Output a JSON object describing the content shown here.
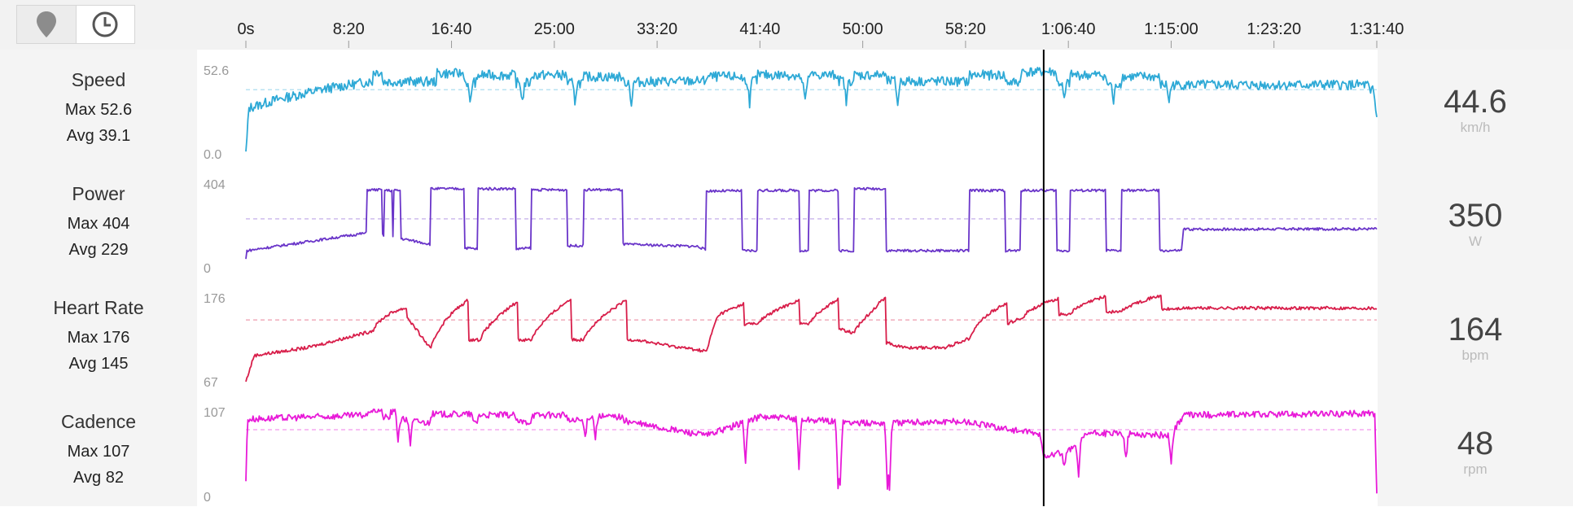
{
  "toolbar": {
    "map_button": "map-pin-icon",
    "time_button": "clock-icon"
  },
  "chart_data": {
    "type": "line",
    "x_unit": "seconds",
    "x_range": [
      0,
      5500
    ],
    "x_ticks": [
      {
        "label": "0s",
        "value": 0
      },
      {
        "label": "8:20",
        "value": 500
      },
      {
        "label": "16:40",
        "value": 1000
      },
      {
        "label": "25:00",
        "value": 1500
      },
      {
        "label": "33:20",
        "value": 2000
      },
      {
        "label": "41:40",
        "value": 2500
      },
      {
        "label": "50:00",
        "value": 3000
      },
      {
        "label": "58:20",
        "value": 3500
      },
      {
        "label": "1:06:40",
        "value": 4000
      },
      {
        "label": "1:15:00",
        "value": 4500
      },
      {
        "label": "1:23:20",
        "value": 5000
      },
      {
        "label": "1:31:40",
        "value": 5500
      }
    ],
    "cursor_x": 3880,
    "series": [
      {
        "name": "Speed",
        "max_label": "Max 52.6",
        "avg_label": "Avg 39.1",
        "max": 52.6,
        "avg": 39.1,
        "ylim": [
          0.0,
          52.6
        ],
        "ymax_label": "52.6",
        "ymin_label": "0.0",
        "current": "44.6",
        "unit": "km/h",
        "color": "#2ea9d6",
        "base": [
          [
            0,
            0
          ],
          [
            15,
            28
          ],
          [
            150,
            33
          ],
          [
            400,
            40
          ],
          [
            600,
            44
          ],
          [
            900,
            44
          ],
          [
            1500,
            43
          ],
          [
            2500,
            45
          ],
          [
            3500,
            44
          ],
          [
            4500,
            42
          ],
          [
            5480,
            42
          ],
          [
            5500,
            22
          ]
        ],
        "intervals": [
          [
            620,
            660,
            50
          ],
          [
            930,
            1060,
            49
          ],
          [
            1130,
            1310,
            48
          ],
          [
            1390,
            1560,
            48
          ],
          [
            1640,
            1830,
            47
          ],
          [
            2240,
            2410,
            47
          ],
          [
            2490,
            2690,
            48
          ],
          [
            2740,
            2880,
            48
          ],
          [
            2960,
            3110,
            48
          ],
          [
            3520,
            3690,
            48
          ],
          [
            3770,
            3940,
            50
          ],
          [
            4010,
            4180,
            48
          ],
          [
            4260,
            4440,
            47
          ]
        ],
        "dips": [
          [
            1090,
            30
          ],
          [
            1345,
            32
          ],
          [
            1600,
            32
          ],
          [
            1875,
            30
          ],
          [
            2450,
            31
          ],
          [
            2720,
            31
          ],
          [
            2920,
            31
          ],
          [
            3170,
            30
          ],
          [
            3980,
            32
          ],
          [
            4220,
            31
          ],
          [
            4490,
            32
          ],
          [
            5470,
            35
          ]
        ],
        "noise": 3
      },
      {
        "name": "Power",
        "max_label": "Max 404",
        "avg_label": "Avg 229",
        "max": 404,
        "avg": 229,
        "ylim": [
          0,
          404
        ],
        "ymax_label": "404",
        "ymin_label": "0",
        "current": "350",
        "unit": "W",
        "color": "#6a35c9",
        "base": [
          [
            0,
            40
          ],
          [
            5,
            80
          ],
          [
            600,
            165
          ],
          [
            900,
            110
          ],
          [
            1200,
            80
          ],
          [
            1500,
            100
          ],
          [
            1830,
            110
          ],
          [
            2200,
            100
          ],
          [
            2240,
            80
          ],
          [
            3000,
            80
          ],
          [
            3500,
            80
          ],
          [
            3800,
            80
          ],
          [
            4550,
            80
          ],
          [
            4560,
            180
          ],
          [
            5500,
            182
          ],
          [
            5498,
            170
          ],
          [
            5500,
            0
          ]
        ],
        "intervals": [
          [
            590,
            660,
            365
          ],
          [
            675,
            710,
            362
          ],
          [
            720,
            750,
            362
          ],
          [
            900,
            1060,
            370
          ],
          [
            1130,
            1310,
            370
          ],
          [
            1390,
            1560,
            365
          ],
          [
            1640,
            1830,
            365
          ],
          [
            2240,
            2410,
            360
          ],
          [
            2490,
            2690,
            362
          ],
          [
            2740,
            2880,
            362
          ],
          [
            2960,
            3110,
            370
          ],
          [
            3520,
            3690,
            362
          ],
          [
            3770,
            3940,
            362
          ],
          [
            4010,
            4180,
            362
          ],
          [
            4260,
            4440,
            362
          ]
        ],
        "dips": [],
        "noise": 6
      },
      {
        "name": "Heart Rate",
        "max_label": "Max 176",
        "avg_label": "Avg 145",
        "max": 176,
        "avg": 145,
        "ylim": [
          67,
          176
        ],
        "ymax_label": "176",
        "ymin_label": "67",
        "current": "164",
        "unit": "bpm",
        "color": "#d81e4a",
        "base": [
          [
            0,
            67
          ],
          [
            40,
            100
          ],
          [
            300,
            110
          ],
          [
            600,
            130
          ],
          [
            780,
            150
          ],
          [
            900,
            108
          ],
          [
            1000,
            120
          ],
          [
            1500,
            120
          ],
          [
            1900,
            120
          ],
          [
            2000,
            115
          ],
          [
            2250,
            105
          ],
          [
            2300,
            140
          ],
          [
            2800,
            140
          ],
          [
            3000,
            125
          ],
          [
            3200,
            110
          ],
          [
            3400,
            110
          ],
          [
            3800,
            150
          ],
          [
            4600,
            160
          ],
          [
            5500,
            160
          ],
          [
            5500,
            155
          ]
        ],
        "intervals": [
          [
            620,
            780,
            160
          ],
          [
            900,
            1080,
            170
          ],
          [
            1140,
            1320,
            168
          ],
          [
            1390,
            1580,
            172
          ],
          [
            1640,
            1850,
            170
          ],
          [
            2240,
            2420,
            165
          ],
          [
            2490,
            2690,
            170
          ],
          [
            2740,
            2880,
            172
          ],
          [
            2960,
            3110,
            174
          ],
          [
            3520,
            3700,
            165
          ],
          [
            3780,
            3950,
            172
          ],
          [
            4010,
            4180,
            175
          ],
          [
            4260,
            4450,
            176
          ]
        ],
        "dips": [],
        "noise": 2
      },
      {
        "name": "Cadence",
        "max_label": "Max 107",
        "avg_label": "Avg 82",
        "max": 107,
        "avg": 82,
        "ylim": [
          0,
          107
        ],
        "ymax_label": "107",
        "ymin_label": "0",
        "current": "48",
        "unit": "rpm",
        "color": "#e81ad8",
        "base": [
          [
            0,
            20
          ],
          [
            8,
            95
          ],
          [
            600,
            100
          ],
          [
            900,
            90
          ],
          [
            1500,
            92
          ],
          [
            1800,
            95
          ],
          [
            2000,
            85
          ],
          [
            2240,
            75
          ],
          [
            2500,
            98
          ],
          [
            3000,
            90
          ],
          [
            3500,
            92
          ],
          [
            3860,
            76
          ],
          [
            3880,
            50
          ],
          [
            4000,
            55
          ],
          [
            4100,
            78
          ],
          [
            4500,
            75
          ],
          [
            4560,
            100
          ],
          [
            5490,
            102
          ],
          [
            5500,
            0
          ]
        ],
        "intervals": [
          [
            600,
            660,
            106
          ],
          [
            700,
            740,
            104
          ],
          [
            900,
            1100,
            101
          ],
          [
            1130,
            1310,
            100
          ],
          [
            1390,
            1560,
            100
          ],
          [
            1640,
            1830,
            98
          ]
        ],
        "dips": [
          [
            740,
            70
          ],
          [
            800,
            65
          ],
          [
            1650,
            70
          ],
          [
            1700,
            72
          ],
          [
            2430,
            40
          ],
          [
            2690,
            35
          ],
          [
            2880,
            12
          ],
          [
            2890,
            10
          ],
          [
            3120,
            8
          ],
          [
            3130,
            10
          ],
          [
            3980,
            35
          ],
          [
            4050,
            25
          ],
          [
            4280,
            45
          ],
          [
            4500,
            40
          ]
        ],
        "noise": 4
      }
    ]
  }
}
